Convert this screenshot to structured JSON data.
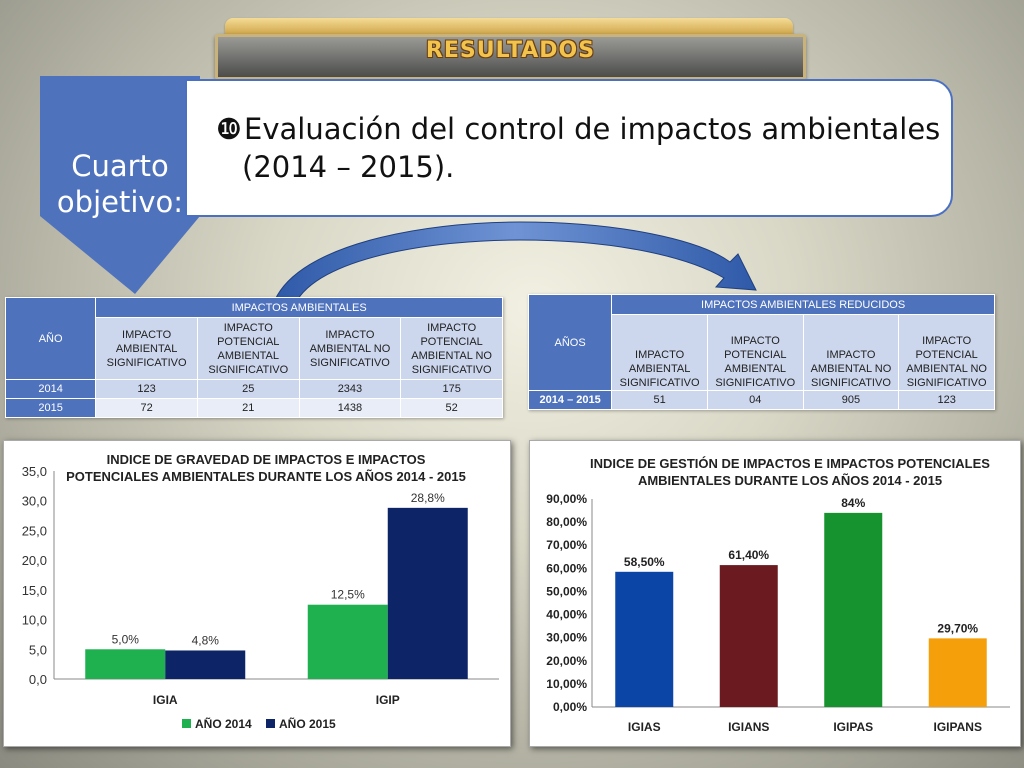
{
  "banner": {
    "title": "RESULTADOS"
  },
  "objective": {
    "label_line1": "Cuarto",
    "label_line2": "objetivo:",
    "bullet": "❿",
    "text_line1": "Evaluación del control de impactos ambientales",
    "text_line2": "(2014 – 2015)."
  },
  "table1": {
    "col_year": "AÑO",
    "group_header": "IMPACTOS AMBIENTALES",
    "columns": [
      "IMPACTO AMBIENTAL SIGNIFICATIVO",
      "IMPACTO POTENCIAL AMBIENTAL SIGNIFICATIVO",
      "IMPACTO AMBIENTAL NO SIGNIFICATIVO",
      "IMPACTO POTENCIAL AMBIENTAL NO SIGNIFICATIVO"
    ],
    "rows": [
      {
        "year": "2014",
        "values": [
          "123",
          "25",
          "2343",
          "175"
        ]
      },
      {
        "year": "2015",
        "values": [
          "72",
          "21",
          "1438",
          "52"
        ]
      }
    ]
  },
  "table2": {
    "col_year": "AÑOS",
    "group_header": "IMPACTOS AMBIENTALES REDUCIDOS",
    "columns": [
      "IMPACTO AMBIENTAL SIGNIFICATIVO",
      "IMPACTO POTENCIAL AMBIENTAL SIGNIFICATIVO",
      "IMPACTO AMBIENTAL NO SIGNIFICATIVO",
      "IMPACTO POTENCIAL AMBIENTAL NO SIGNIFICATIVO"
    ],
    "rows": [
      {
        "year": "2014 – 2015",
        "values": [
          "51",
          "04",
          "905",
          "123"
        ]
      }
    ]
  },
  "colors": {
    "blue_accent": "#4f72bd",
    "green_2014": "#1fb14f",
    "navy_2015": "#0d2466",
    "igias": "#0b46a6",
    "igians": "#6b1b1f",
    "igipas": "#16932f",
    "igipans": "#f5a00a"
  },
  "chart_data": [
    {
      "type": "bar",
      "title_line1": "INDICE DE GRAVEDAD DE IMPACTOS E IMPACTOS",
      "title_line2": "POTENCIALES AMBIENTALES DURANTE LOS AÑOS 2014 - 2015",
      "categories": [
        "IGIA",
        "IGIP"
      ],
      "series": [
        {
          "name": "AÑO 2014",
          "values": [
            5.0,
            12.5
          ],
          "labels": [
            "5,0%",
            "12,5%"
          ],
          "color": "#1fb14f"
        },
        {
          "name": "AÑO 2015",
          "values": [
            4.8,
            28.8
          ],
          "labels": [
            "4,8%",
            "28,8%"
          ],
          "color": "#0d2466"
        }
      ],
      "ylim": [
        0,
        35
      ],
      "yticks": [
        "0,0",
        "5,0",
        "10,0",
        "15,0",
        "20,0",
        "25,0",
        "30,0",
        "35,0"
      ],
      "legend": "bottom",
      "grid": false
    },
    {
      "type": "bar",
      "title_line1": "INDICE DE GESTIÓN DE IMPACTOS E IMPACTOS POTENCIALES",
      "title_line2": "AMBIENTALES DURANTE LOS AÑOS 2014 - 2015",
      "categories": [
        "IGIAS",
        "IGIANS",
        "IGIPAS",
        "IGIPANS"
      ],
      "values": [
        58.5,
        61.4,
        84,
        29.7
      ],
      "labels": [
        "58,50%",
        "61,40%",
        "84%",
        "29,70%"
      ],
      "colors": [
        "#0b46a6",
        "#6b1b1f",
        "#16932f",
        "#f5a00a"
      ],
      "ylim": [
        0,
        90
      ],
      "yticks": [
        "0,00%",
        "10,00%",
        "20,00%",
        "30,00%",
        "40,00%",
        "50,00%",
        "60,00%",
        "70,00%",
        "80,00%",
        "90,00%"
      ],
      "grid": false
    }
  ]
}
